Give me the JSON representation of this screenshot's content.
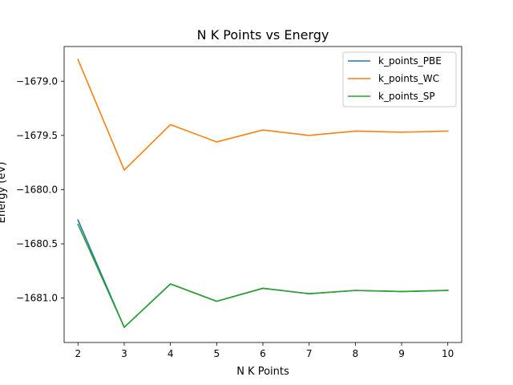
{
  "chart_data": {
    "type": "line",
    "title": "N K Points vs Energy",
    "xlabel": "N K Points",
    "ylabel": "Energy (eV)",
    "x": [
      2,
      3,
      4,
      5,
      6,
      7,
      8,
      9,
      10
    ],
    "xlim": [
      1.7,
      10.3
    ],
    "ylim": [
      -1681.41,
      -1678.68
    ],
    "xticks": [
      2,
      3,
      4,
      5,
      6,
      7,
      8,
      9,
      10
    ],
    "yticks": [
      -1681.0,
      -1680.5,
      -1680.0,
      -1679.5,
      -1679.0
    ],
    "ytick_labels": [
      "−1681.0",
      "−1680.5",
      "−1680.0",
      "−1679.5",
      "−1679.0"
    ],
    "grid": false,
    "legend_position": "top-right",
    "series": [
      {
        "name": "k_points_PBE",
        "color": "#1f77b4",
        "values": [
          -1680.28,
          -1681.27,
          -1680.87,
          -1681.03,
          -1680.91,
          -1680.96,
          -1680.93,
          -1680.94,
          -1680.93
        ]
      },
      {
        "name": "k_points_WC",
        "color": "#ff7f0e",
        "values": [
          -1678.8,
          -1679.82,
          -1679.4,
          -1679.56,
          -1679.45,
          -1679.5,
          -1679.46,
          -1679.47,
          -1679.46
        ]
      },
      {
        "name": "k_points_SP",
        "color": "#2ca02c",
        "values": [
          -1680.32,
          -1681.27,
          -1680.87,
          -1681.03,
          -1680.91,
          -1680.96,
          -1680.93,
          -1680.94,
          -1680.93
        ]
      }
    ]
  }
}
